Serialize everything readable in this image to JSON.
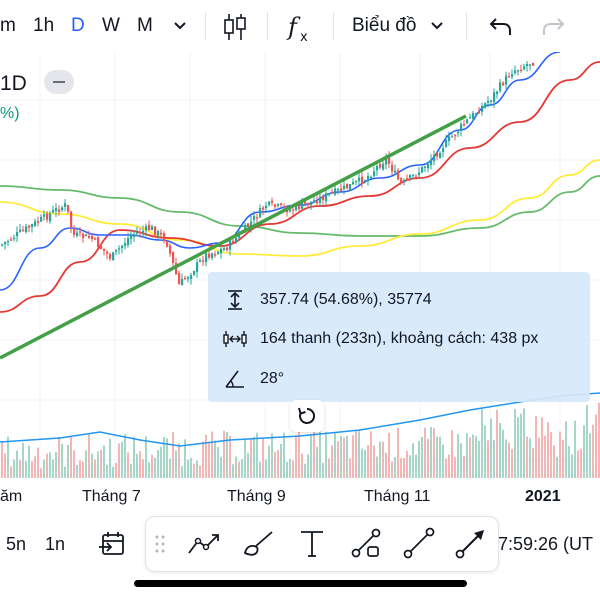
{
  "toolbar": {
    "intervals": [
      "m",
      "1h",
      "D",
      "W",
      "M"
    ],
    "active_interval": "D",
    "chart_type_label": "Biểu đồ",
    "icons": [
      "chevron-down-icon",
      "candles-icon",
      "indicators-icon",
      "undo-icon",
      "redo-icon"
    ]
  },
  "legend": {
    "symbol": "1D",
    "change": "%)"
  },
  "measure": {
    "price_range": "357.74 (54.68%), 35774",
    "bars_info": "164 thanh (233n), khoảng cách: 438 px",
    "angle": "28°"
  },
  "time_axis": {
    "labels": [
      "ăm",
      "Tháng 7",
      "Tháng 9",
      "Tháng 11",
      "2021"
    ]
  },
  "bottom_bar": {
    "ranges": [
      "5n",
      "1n"
    ],
    "clock": "7:59:26 (UT",
    "drawing_tools": [
      "trend-line-icon",
      "brush-icon",
      "text-icon",
      "shape-icon",
      "line-icon",
      "arrow-icon"
    ]
  },
  "colors": {
    "up": "#26a69a",
    "down": "#ef5350",
    "ma_blue": "#2962ff",
    "ma_red": "#e53935",
    "ma_yellow": "#ffeb3b",
    "ma_green": "#66bb6a",
    "trend": "#4caf50",
    "accent": "#2962ff"
  }
}
